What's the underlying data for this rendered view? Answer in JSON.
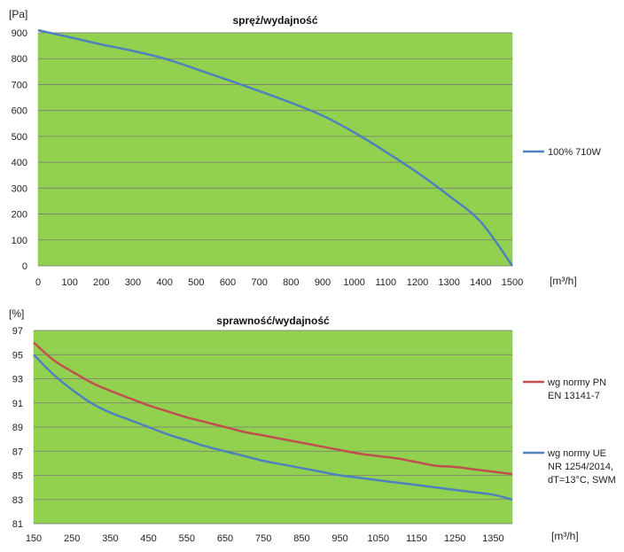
{
  "chart_data": [
    {
      "type": "line",
      "title": "spręż/wydajność",
      "y_unit": "[Pa]",
      "x_unit": "[m³/h]",
      "xlim": [
        0,
        1500
      ],
      "ylim": [
        0,
        900
      ],
      "x_ticks": [
        0,
        100,
        200,
        300,
        400,
        500,
        600,
        700,
        800,
        900,
        1000,
        1100,
        1200,
        1300,
        1400,
        1500
      ],
      "y_ticks": [
        0,
        100,
        200,
        300,
        400,
        500,
        600,
        700,
        800,
        900
      ],
      "grid": "horizontal",
      "legend_position": "right",
      "background_color": "#92d050",
      "series": [
        {
          "name": "100% 710W",
          "color": "#4f81bd",
          "x": [
            0,
            100,
            200,
            300,
            400,
            500,
            600,
            700,
            800,
            900,
            1000,
            1100,
            1200,
            1300,
            1400,
            1500
          ],
          "y": [
            910,
            883,
            855,
            830,
            800,
            760,
            718,
            675,
            630,
            580,
            515,
            440,
            360,
            270,
            170,
            0
          ]
        }
      ]
    },
    {
      "type": "line",
      "title": "sprawność/wydajność",
      "y_unit": "[%]",
      "x_unit": "[m³/h]",
      "xlim": [
        150,
        1400
      ],
      "ylim": [
        81,
        97
      ],
      "x_ticks": [
        150,
        250,
        350,
        450,
        550,
        650,
        750,
        850,
        950,
        1050,
        1150,
        1250,
        1350
      ],
      "y_ticks": [
        81,
        83,
        85,
        87,
        89,
        91,
        93,
        95,
        97
      ],
      "grid": "horizontal",
      "legend_position": "right",
      "background_color": "#92d050",
      "series": [
        {
          "name": "wg normy PN EN 13141-7",
          "legend_lines": [
            "wg normy PN",
            "EN 13141-7"
          ],
          "color": "#c0504d",
          "x": [
            150,
            200,
            250,
            300,
            350,
            400,
            450,
            500,
            550,
            600,
            650,
            700,
            750,
            800,
            850,
            900,
            950,
            1000,
            1050,
            1100,
            1150,
            1200,
            1250,
            1300,
            1350,
            1400
          ],
          "y": [
            96.0,
            94.6,
            93.6,
            92.7,
            92.0,
            91.4,
            90.8,
            90.3,
            89.8,
            89.4,
            89.0,
            88.6,
            88.3,
            88.0,
            87.7,
            87.4,
            87.1,
            86.8,
            86.6,
            86.4,
            86.1,
            85.8,
            85.7,
            85.5,
            85.3,
            85.1
          ]
        },
        {
          "name": "wg normy UE NR 1254/2014, dT=13°C, SWM",
          "legend_lines": [
            "wg normy UE",
            "NR 1254/2014,",
            "dT=13°C, SWM"
          ],
          "color": "#4f81bd",
          "x": [
            150,
            200,
            250,
            300,
            350,
            400,
            450,
            500,
            550,
            600,
            650,
            700,
            750,
            800,
            850,
            900,
            950,
            1000,
            1050,
            1100,
            1150,
            1200,
            1250,
            1300,
            1350,
            1400
          ],
          "y": [
            95.0,
            93.4,
            92.1,
            91.0,
            90.2,
            89.6,
            89.0,
            88.4,
            87.9,
            87.4,
            87.0,
            86.6,
            86.2,
            85.9,
            85.6,
            85.3,
            85.0,
            84.8,
            84.6,
            84.4,
            84.2,
            84.0,
            83.8,
            83.6,
            83.4,
            83.0
          ]
        }
      ]
    }
  ]
}
